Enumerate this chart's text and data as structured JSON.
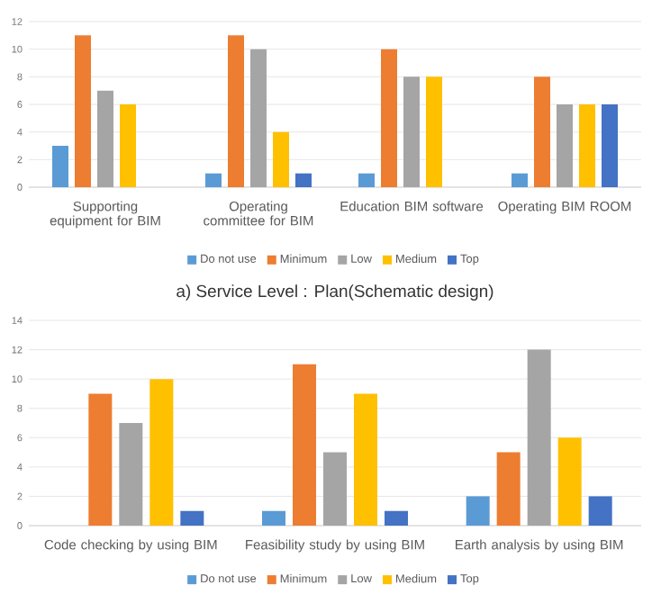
{
  "chart_data": [
    {
      "type": "bar",
      "categories": [
        "Supporting equipment for BIM",
        "Operating committee for BIM",
        "Education BIM software",
        "Operating BIM ROOM"
      ],
      "series": [
        {
          "name": "Do not use",
          "color": "#5b9bd5",
          "values": [
            3,
            1,
            1,
            1
          ]
        },
        {
          "name": "Minimum",
          "color": "#ed7d31",
          "values": [
            11,
            11,
            10,
            8
          ]
        },
        {
          "name": "Low",
          "color": "#a5a5a5",
          "values": [
            7,
            10,
            8,
            6
          ]
        },
        {
          "name": "Medium",
          "color": "#ffc000",
          "values": [
            6,
            4,
            8,
            6
          ]
        },
        {
          "name": "Top",
          "color": "#4472c4",
          "values": [
            0,
            1,
            0,
            6
          ]
        }
      ],
      "ylim": [
        0,
        12
      ],
      "yticks": [
        0,
        2,
        4,
        6,
        8,
        10,
        12
      ],
      "grid": "y",
      "legend": "bottom",
      "annotations": [
        "a) Service Level : Plan(Schematic design)"
      ]
    },
    {
      "type": "bar",
      "categories": [
        "Code checking by using BIM",
        "Feasibility study by using BIM",
        "Earth analysis by using BIM"
      ],
      "series": [
        {
          "name": "Do not use",
          "color": "#5b9bd5",
          "values": [
            0,
            1,
            2
          ]
        },
        {
          "name": "Minimum",
          "color": "#ed7d31",
          "values": [
            9,
            11,
            5
          ]
        },
        {
          "name": "Low",
          "color": "#a5a5a5",
          "values": [
            7,
            5,
            12
          ]
        },
        {
          "name": "Medium",
          "color": "#ffc000",
          "values": [
            10,
            9,
            6
          ]
        },
        {
          "name": "Top",
          "color": "#4472c4",
          "values": [
            1,
            1,
            2
          ]
        }
      ],
      "ylim": [
        0,
        14
      ],
      "yticks": [
        0,
        2,
        4,
        6,
        8,
        10,
        12,
        14
      ],
      "grid": "y",
      "legend": "bottom"
    }
  ]
}
